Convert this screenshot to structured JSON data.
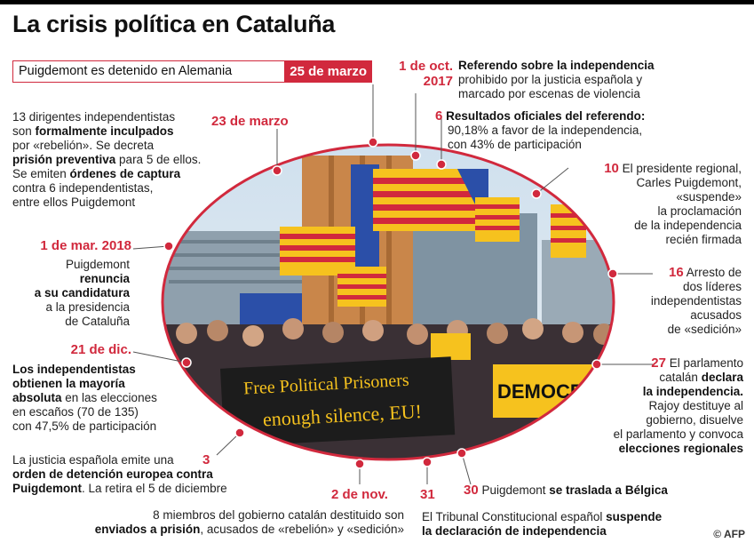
{
  "title": "La crisis política en Cataluña",
  "headline": {
    "text": "Puigdemont es detenido en Alemania",
    "date": "25 de marzo"
  },
  "events": {
    "mar23": {
      "date": "23 de marzo",
      "l1a": "13 dirigentes independentistas",
      "l2a": "son ",
      "l2b": "formalmente inculpados",
      "l3": "por «rebelión». Se decreta",
      "l4a": "prisión preventiva",
      "l4b": " para 5 de ellos.",
      "l5a": "Se emiten ",
      "l5b": "órdenes de captura",
      "l6": "contra 6 independentistas,",
      "l7": "entre ellos Puigdemont"
    },
    "mar1": {
      "date": "1 de mar. 2018",
      "l1": "Puigdemont",
      "l2": "renuncia",
      "l3": "a su candidatura",
      "l4": "a la presidencia",
      "l5": "de Cataluña"
    },
    "dic21": {
      "date": "21 de dic.",
      "l1": "Los independentistas",
      "l2": "obtienen la mayoría",
      "l3a": "absoluta",
      "l3b": " en las elecciones",
      "l4": "en escaños (70 de 135)",
      "l5": "con 47,5% de participación"
    },
    "nov3": {
      "day": "3",
      "l1": "La justicia española emite una",
      "l2": "orden de detención europea contra",
      "l3a": "Puigdemont",
      "l3b": ". La retira el 5 de diciembre"
    },
    "nov2": {
      "date": "2 de nov.",
      "l1": "8 miembros del gobierno catalán destituido son",
      "l2a": "enviados a prisión",
      "l2b": ", acusados de «rebelión» y «sedición»"
    },
    "oct31": {
      "day": "31",
      "l1a": "El Tribunal Constitucional español ",
      "l1b": "suspende",
      "l2": "la declaración de independencia"
    },
    "oct30": {
      "day": "30",
      "l1a": "Puigdemont ",
      "l1b": "se traslada a Bélgica"
    },
    "oct1": {
      "date1": "1 de oct.",
      "date2": "2017",
      "l1": "Referendo sobre la independencia",
      "l2": "prohibido por la justicia española y",
      "l3": "marcado por escenas de violencia"
    },
    "oct6": {
      "day": "6",
      "l1": "Resultados oficiales del referendo:",
      "l2": "90,18% a favor de la independencia,",
      "l3": "con 43% de participación"
    },
    "oct10": {
      "day": "10",
      "l1": "El presidente regional,",
      "l2": "Carles Puigdemont,",
      "l3": "«suspende»",
      "l4": "la proclamación",
      "l5": "de la independencia",
      "l6": "recién firmada"
    },
    "oct16": {
      "day": "16",
      "l1": "Arresto de",
      "l2": "dos líderes",
      "l3": "independentistas",
      "l4": "acusados",
      "l5": "de «sedición»"
    },
    "oct27": {
      "day": "27",
      "l1": "El parlamento",
      "l2a": "catalán ",
      "l2b": "declara",
      "l3": "la independencia.",
      "l4": "Rajoy destituye al",
      "l5": "gobierno, disuelve",
      "l6": "el parlamento y convoca",
      "l7": "elecciones regionales"
    }
  },
  "photo": {
    "banner1": "Free Political Prisoners",
    "banner2": "enough silence, EU!",
    "banner3": "DEMOCR"
  },
  "credit": "© AFP",
  "colors": {
    "accent": "#d1293d",
    "ring": "#d1293d"
  }
}
